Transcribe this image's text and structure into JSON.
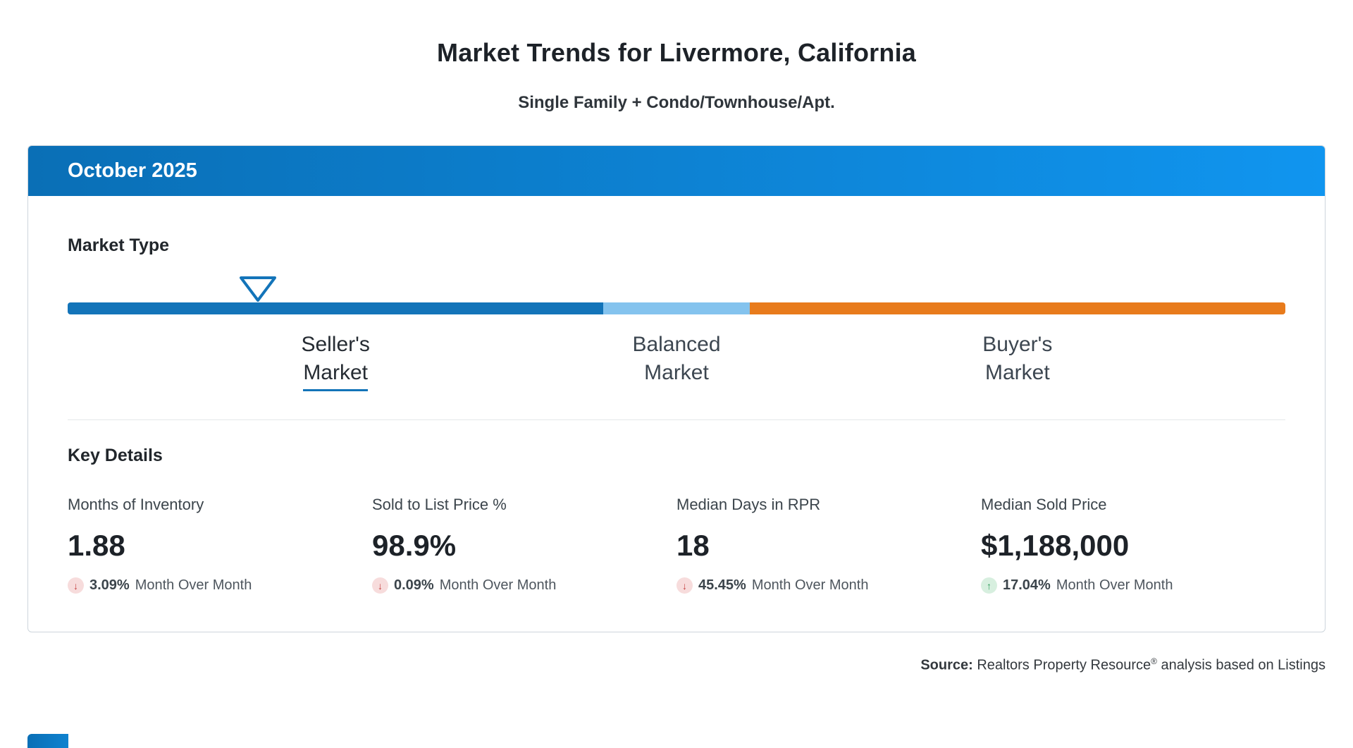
{
  "page": {
    "title": "Market Trends for Livermore, California",
    "subtitle": "Single Family + Condo/Townhouse/Apt."
  },
  "card": {
    "month_label": "October 2025",
    "market_type": {
      "heading": "Market Type",
      "selected": "sellers",
      "indicator_position_pct": 15.6,
      "segments": [
        {
          "name": "sellers",
          "label_line1": "Seller's",
          "label_line2": "Market",
          "color": "#1374b9",
          "width_pct": 44
        },
        {
          "name": "balanced",
          "label_line1": "Balanced",
          "label_line2": "Market",
          "color": "#84c3ee",
          "width_pct": 12
        },
        {
          "name": "buyers",
          "label_line1": "Buyer's",
          "label_line2": "Market",
          "color": "#e87b1c",
          "width_pct": 44
        }
      ]
    },
    "key_details": {
      "heading": "Key Details",
      "metrics": [
        {
          "label": "Months of Inventory",
          "value": "1.88",
          "direction": "down",
          "change": "3.09%",
          "period": "Month Over Month"
        },
        {
          "label": "Sold to List Price %",
          "value": "98.9%",
          "direction": "down",
          "change": "0.09%",
          "period": "Month Over Month"
        },
        {
          "label": "Median Days in RPR",
          "value": "18",
          "direction": "down",
          "change": "45.45%",
          "period": "Month Over Month"
        },
        {
          "label": "Median Sold Price",
          "value": "$1,188,000",
          "direction": "up",
          "change": "17.04%",
          "period": "Month Over Month"
        }
      ]
    }
  },
  "footer": {
    "source_label": "Source:",
    "source_text": " Realtors Property Resource",
    "source_reg": "®",
    "source_suffix": " analysis based on Listings"
  },
  "colors": {
    "header_gradient_start": "#0a6fb6",
    "header_gradient_end": "#1095ef",
    "seller_blue": "#1374b9",
    "balanced_light_blue": "#84c3ee",
    "buyer_orange": "#e87b1c",
    "down_red": "#c54242",
    "up_green": "#2e9e5b"
  }
}
